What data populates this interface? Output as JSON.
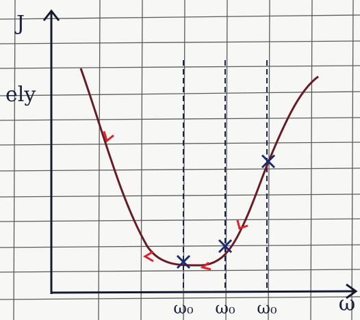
{
  "margin_text": "ely",
  "axes": {
    "y_label": "J",
    "x_label": "ω"
  },
  "markers": [
    {
      "label": "ω₀"
    },
    {
      "label": "ω₀"
    },
    {
      "label": "ω₀"
    }
  ]
}
